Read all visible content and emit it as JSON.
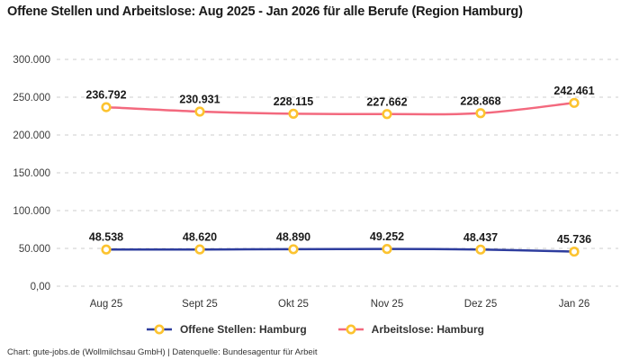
{
  "title": "Offene Stellen und Arbeitslose: Aug 2025 - Jan 2026 für alle Berufe (Region Hamburg)",
  "footer": "Chart: gute-jobs.de (Wollmilchsau GmbH) | Datenquelle: Bundesagentur für Arbeit",
  "chart_data": {
    "type": "line",
    "title": "Offene Stellen und Arbeitslose: Aug 2025 - Jan 2026 für alle Berufe (Region Hamburg)",
    "categories": [
      "Aug 25",
      "Sept 25",
      "Okt 25",
      "Nov 25",
      "Dez 25",
      "Jan 26"
    ],
    "series": [
      {
        "name": "Offene Stellen: Hamburg",
        "color": "#2e3d9e",
        "values": [
          48538,
          48620,
          48890,
          49252,
          48437,
          45736
        ],
        "point_labels": [
          "48.538",
          "48.620",
          "48.890",
          "49.252",
          "48.437",
          "45.736"
        ]
      },
      {
        "name": "Arbeitslose: Hamburg",
        "color": "#f3697e",
        "values": [
          236792,
          230931,
          228115,
          227662,
          228868,
          242461
        ],
        "point_labels": [
          "236.792",
          "230.931",
          "228.115",
          "227.662",
          "228.868",
          "242.461"
        ]
      }
    ],
    "y_ticks": [
      {
        "value": 0,
        "label": "0,00"
      },
      {
        "value": 50000,
        "label": "50.000"
      },
      {
        "value": 100000,
        "label": "100.000"
      },
      {
        "value": 150000,
        "label": "150.000"
      },
      {
        "value": 200000,
        "label": "200.000"
      },
      {
        "value": 250000,
        "label": "250.000"
      },
      {
        "value": 300000,
        "label": "300.000"
      }
    ],
    "ylim": [
      0,
      300000
    ],
    "grid": "horizontal-dashed",
    "grid_color": "#cdcdcd",
    "marker_color": "#fcc330",
    "legend_position": "bottom",
    "xlabel": "",
    "ylabel": ""
  }
}
